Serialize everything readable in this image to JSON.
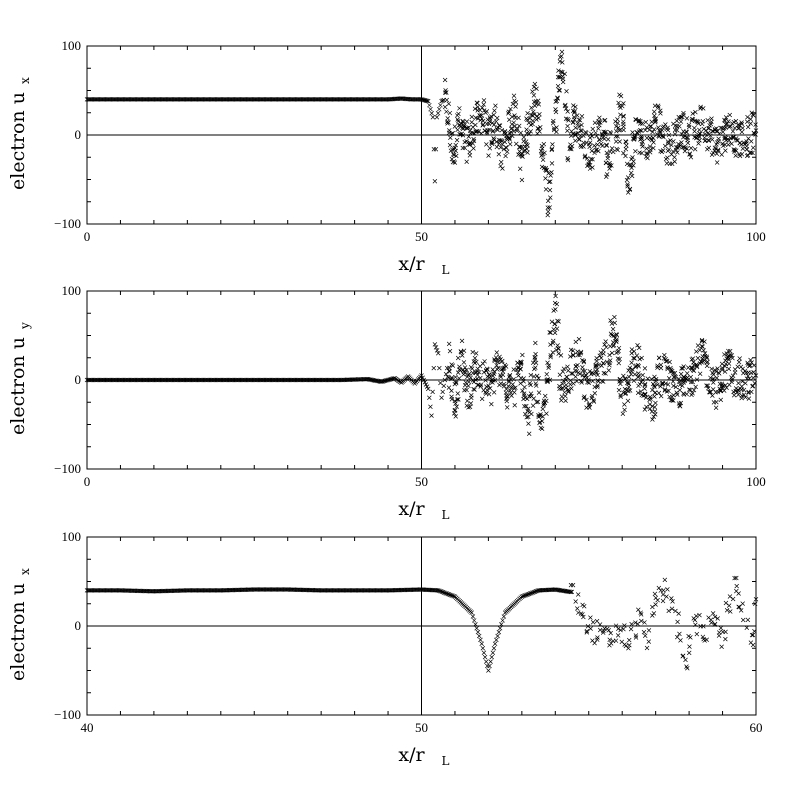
{
  "chart_data": [
    {
      "type": "scatter",
      "ylabel": "electron u",
      "ylabel_sub": "x",
      "xlabel": "x/r",
      "xlabel_sub": "L",
      "xlim": [
        0,
        100
      ],
      "ylim": [
        -100,
        100
      ],
      "xticks": [
        "0",
        "50",
        "100"
      ],
      "yticks": [
        "100",
        "0",
        "−100"
      ],
      "reference_lines": {
        "x": 50,
        "y": 0
      },
      "marker": "x",
      "series": [
        {
          "points": [
            [
              0,
              40
            ],
            [
              5,
              40
            ],
            [
              10,
              40
            ],
            [
              15,
              40
            ],
            [
              20,
              40
            ],
            [
              25,
              40
            ],
            [
              30,
              40
            ],
            [
              35,
              40
            ],
            [
              40,
              40
            ],
            [
              45,
              40
            ],
            [
              47,
              41
            ],
            [
              48.5,
              40
            ],
            [
              50,
              40
            ],
            [
              51,
              38
            ],
            [
              51.7,
              20
            ],
            [
              52,
              -52
            ],
            [
              52.3,
              20
            ],
            [
              53,
              38
            ],
            [
              53.5,
              40
            ],
            [
              54,
              20
            ],
            [
              54.5,
              -15
            ],
            [
              55,
              -10
            ],
            [
              55.5,
              15
            ],
            [
              56,
              0
            ],
            [
              57,
              -10
            ],
            [
              58,
              10
            ],
            [
              59,
              25
            ],
            [
              60,
              -5
            ],
            [
              61,
              15
            ],
            [
              62,
              -20
            ],
            [
              63,
              5
            ],
            [
              64,
              30
            ],
            [
              65,
              -30
            ],
            [
              66,
              10
            ],
            [
              67,
              50
            ],
            [
              68,
              -15
            ],
            [
              69,
              -75
            ],
            [
              70,
              25
            ],
            [
              71,
              85
            ],
            [
              72,
              -10
            ],
            [
              73,
              20
            ],
            [
              75,
              -20
            ],
            [
              77,
              10
            ],
            [
              78,
              -30
            ],
            [
              80,
              30
            ],
            [
              81,
              -60
            ],
            [
              82,
              5
            ],
            [
              84,
              -10
            ],
            [
              85,
              20
            ],
            [
              87,
              -15
            ],
            [
              89,
              10
            ],
            [
              90,
              -5
            ],
            [
              92,
              15
            ],
            [
              94,
              -10
            ],
            [
              96,
              5
            ],
            [
              98,
              -5
            ],
            [
              100,
              5
            ]
          ]
        }
      ]
    },
    {
      "type": "scatter",
      "ylabel": "electron u",
      "ylabel_sub": "y",
      "xlabel": "x/r",
      "xlabel_sub": "L",
      "xlim": [
        0,
        100
      ],
      "ylim": [
        -100,
        100
      ],
      "xticks": [
        "0",
        "50",
        "100"
      ],
      "yticks": [
        "100",
        "0",
        "−100"
      ],
      "reference_lines": {
        "x": 50,
        "y": 0
      },
      "marker": "x",
      "series": [
        {
          "points": [
            [
              0,
              0
            ],
            [
              10,
              0
            ],
            [
              20,
              0
            ],
            [
              30,
              0
            ],
            [
              38,
              0
            ],
            [
              42,
              1
            ],
            [
              44,
              -2
            ],
            [
              46,
              2
            ],
            [
              47,
              -3
            ],
            [
              48,
              4
            ],
            [
              49,
              -4
            ],
            [
              50,
              5
            ],
            [
              51,
              -10
            ],
            [
              51.5,
              -40
            ],
            [
              52,
              40
            ],
            [
              52.5,
              30
            ],
            [
              53,
              -20
            ],
            [
              54,
              20
            ],
            [
              55,
              -25
            ],
            [
              56,
              25
            ],
            [
              57,
              -15
            ],
            [
              58,
              15
            ],
            [
              60,
              -10
            ],
            [
              62,
              20
            ],
            [
              63,
              -20
            ],
            [
              65,
              15
            ],
            [
              66,
              -40
            ],
            [
              67,
              20
            ],
            [
              68,
              -60
            ],
            [
              69,
              10
            ],
            [
              70,
              80
            ],
            [
              71,
              -20
            ],
            [
              73,
              30
            ],
            [
              75,
              -15
            ],
            [
              77,
              10
            ],
            [
              79,
              60
            ],
            [
              80,
              -20
            ],
            [
              82,
              20
            ],
            [
              84,
              -30
            ],
            [
              86,
              10
            ],
            [
              88,
              -15
            ],
            [
              90,
              5
            ],
            [
              92,
              25
            ],
            [
              94,
              -10
            ],
            [
              96,
              15
            ],
            [
              98,
              -5
            ],
            [
              100,
              5
            ]
          ]
        }
      ]
    },
    {
      "type": "scatter",
      "ylabel": "electron u",
      "ylabel_sub": "x",
      "xlabel": "x/r",
      "xlabel_sub": "L",
      "xlim": [
        40,
        60
      ],
      "ylim": [
        -100,
        100
      ],
      "xticks": [
        "40",
        "50",
        "60"
      ],
      "yticks": [
        "100",
        "0",
        "−100"
      ],
      "reference_lines": {
        "x": 50,
        "y": 0
      },
      "marker": "x",
      "series": [
        {
          "points": [
            [
              40,
              40
            ],
            [
              41,
              40
            ],
            [
              42,
              39
            ],
            [
              43,
              40
            ],
            [
              44,
              40
            ],
            [
              45,
              41
            ],
            [
              46,
              41
            ],
            [
              47,
              40
            ],
            [
              48,
              40
            ],
            [
              49,
              40
            ],
            [
              50,
              41
            ],
            [
              50.5,
              40
            ],
            [
              51,
              33
            ],
            [
              51.5,
              15
            ],
            [
              51.8,
              -20
            ],
            [
              52,
              -50
            ],
            [
              52.2,
              -20
            ],
            [
              52.5,
              15
            ],
            [
              53,
              33
            ],
            [
              53.5,
              40
            ],
            [
              54,
              41
            ],
            [
              54.5,
              38
            ],
            [
              54.8,
              20
            ],
            [
              55,
              0
            ],
            [
              55.3,
              -10
            ],
            [
              55.6,
              -15
            ],
            [
              55.9,
              -5
            ],
            [
              56.2,
              -20
            ],
            [
              56.5,
              10
            ],
            [
              56.8,
              -15
            ],
            [
              57,
              30
            ],
            [
              57.3,
              40
            ],
            [
              57.6,
              10
            ],
            [
              57.9,
              -40
            ],
            [
              58.2,
              5
            ],
            [
              58.5,
              -10
            ],
            [
              58.8,
              15
            ],
            [
              59,
              -20
            ],
            [
              59.3,
              45
            ],
            [
              59.6,
              25
            ],
            [
              59.9,
              -25
            ],
            [
              60,
              30
            ]
          ]
        }
      ]
    }
  ]
}
